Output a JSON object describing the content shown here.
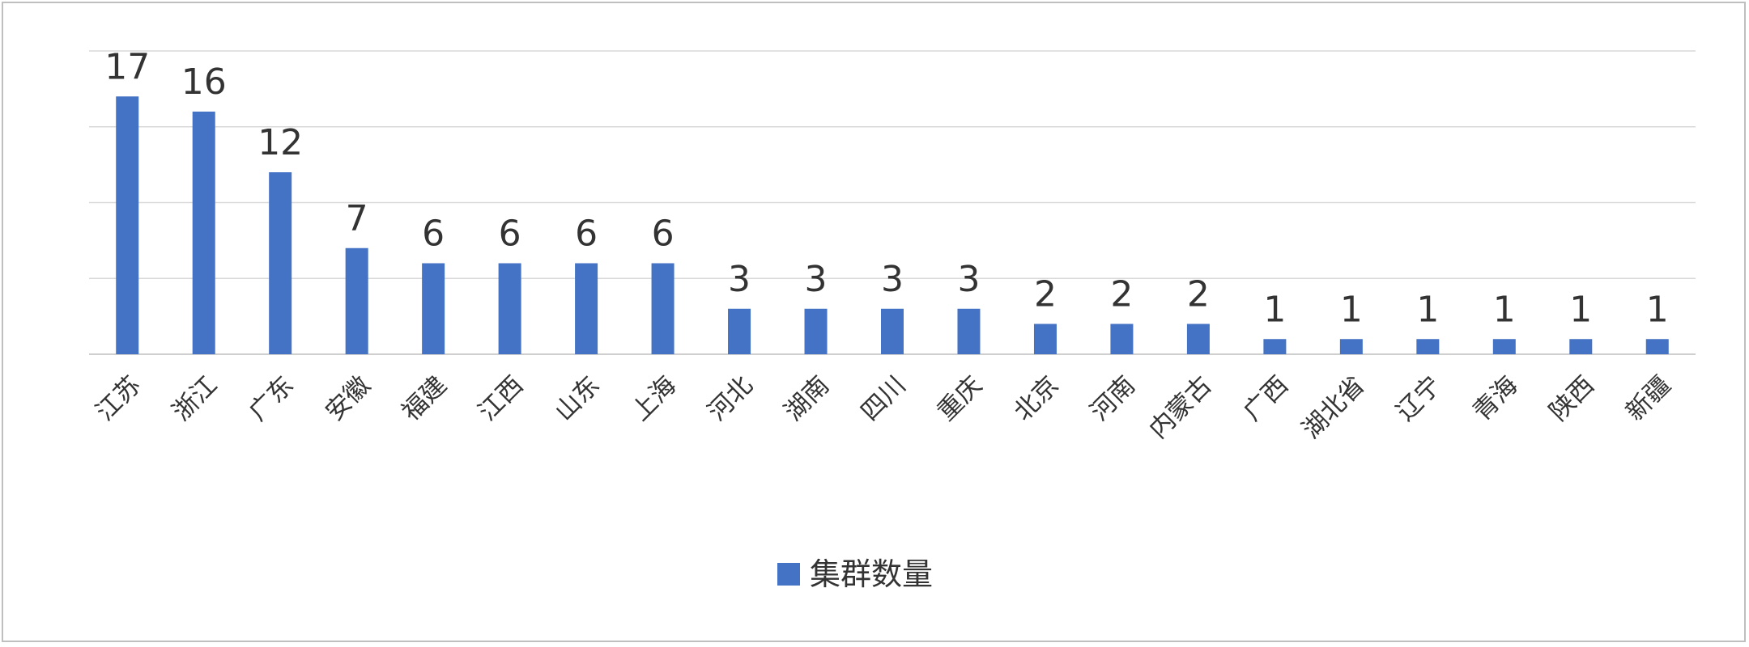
{
  "chart_data": {
    "type": "bar",
    "categories": [
      "江苏",
      "浙江",
      "广东",
      "安徽",
      "福建",
      "江西",
      "山东",
      "上海",
      "河北",
      "湖南",
      "四川",
      "重庆",
      "北京",
      "河南",
      "内蒙古",
      "广西",
      "湖北省",
      "辽宁",
      "青海",
      "陕西",
      "新疆"
    ],
    "series": [
      {
        "name": "集群数量",
        "color": "#4472c4",
        "values": [
          17,
          16,
          12,
          7,
          6,
          6,
          6,
          6,
          3,
          3,
          3,
          3,
          2,
          2,
          2,
          1,
          1,
          1,
          1,
          1,
          1
        ]
      }
    ],
    "ylim": [
      0,
      20
    ],
    "yticks": [
      0,
      5,
      10,
      15,
      20
    ],
    "grid": true,
    "legend": "bottom"
  }
}
